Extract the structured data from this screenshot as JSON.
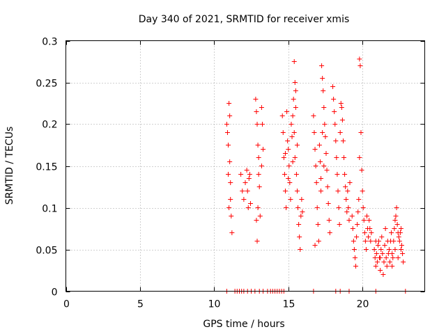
{
  "chart_data": {
    "type": "scatter",
    "title": "Day 340 of 2021, SRMTID for receiver xmis",
    "xlabel": "GPS time / hours",
    "ylabel": "SRMTID / TECUs",
    "xlim": [
      0,
      24.2
    ],
    "ylim": [
      0,
      0.3
    ],
    "xticks": [
      0,
      5,
      10,
      15,
      20
    ],
    "xtick_labels": [
      "0",
      "5",
      "10",
      "15",
      "20"
    ],
    "yticks": [
      0,
      0.05,
      0.1,
      0.15,
      0.2,
      0.25,
      0.3
    ],
    "ytick_labels": [
      "0",
      "0.05",
      "0.1",
      "0.15",
      "0.2",
      "0.25",
      "0.3"
    ],
    "grid": true,
    "marker": "+",
    "series": [
      {
        "name": "SRMTID",
        "color": "#ff0000",
        "points": [
          [
            10.85,
            0.2
          ],
          [
            10.9,
            0.19
          ],
          [
            10.95,
            0.175
          ],
          [
            11.0,
            0.225
          ],
          [
            11.05,
            0.21
          ],
          [
            11.05,
            0.155
          ],
          [
            11.1,
            0.13
          ],
          [
            11.1,
            0.11
          ],
          [
            11.15,
            0.09
          ],
          [
            11.2,
            0.07
          ],
          [
            10.95,
            0.14
          ],
          [
            11.0,
            0.1
          ],
          [
            11.8,
            0.14
          ],
          [
            11.9,
            0.12
          ],
          [
            12.0,
            0.11
          ],
          [
            12.1,
            0.13
          ],
          [
            12.2,
            0.145
          ],
          [
            12.25,
            0.12
          ],
          [
            12.3,
            0.1
          ],
          [
            12.4,
            0.14
          ],
          [
            12.45,
            0.105
          ],
          [
            12.35,
            0.135
          ],
          [
            12.8,
            0.23
          ],
          [
            12.85,
            0.215
          ],
          [
            12.9,
            0.2
          ],
          [
            12.95,
            0.175
          ],
          [
            13.0,
            0.16
          ],
          [
            13.0,
            0.14
          ],
          [
            12.85,
            0.085
          ],
          [
            12.9,
            0.06
          ],
          [
            12.95,
            0.1
          ],
          [
            13.05,
            0.125
          ],
          [
            13.1,
            0.09
          ],
          [
            13.2,
            0.22
          ],
          [
            13.25,
            0.2
          ],
          [
            13.3,
            0.17
          ],
          [
            13.2,
            0.15
          ],
          [
            14.6,
            0.21
          ],
          [
            14.65,
            0.19
          ],
          [
            14.7,
            0.16
          ],
          [
            14.75,
            0.14
          ],
          [
            14.8,
            0.12
          ],
          [
            14.85,
            0.1
          ],
          [
            14.9,
            0.215
          ],
          [
            14.95,
            0.18
          ],
          [
            15.0,
            0.17
          ],
          [
            15.05,
            0.15
          ],
          [
            15.1,
            0.13
          ],
          [
            15.15,
            0.11
          ],
          [
            15.2,
            0.2
          ],
          [
            15.25,
            0.185
          ],
          [
            15.3,
            0.21
          ],
          [
            15.35,
            0.23
          ],
          [
            15.4,
            0.275
          ],
          [
            15.45,
            0.25
          ],
          [
            15.5,
            0.24
          ],
          [
            15.5,
            0.22
          ],
          [
            15.4,
            0.19
          ],
          [
            15.45,
            0.16
          ],
          [
            15.55,
            0.14
          ],
          [
            15.6,
            0.12
          ],
          [
            15.65,
            0.1
          ],
          [
            15.7,
            0.08
          ],
          [
            15.75,
            0.065
          ],
          [
            15.8,
            0.05
          ],
          [
            15.85,
            0.09
          ],
          [
            15.9,
            0.11
          ],
          [
            15.95,
            0.095
          ],
          [
            15.6,
            0.175
          ],
          [
            15.3,
            0.155
          ],
          [
            14.8,
            0.165
          ],
          [
            15.0,
            0.135
          ],
          [
            16.7,
            0.21
          ],
          [
            16.75,
            0.19
          ],
          [
            16.8,
            0.17
          ],
          [
            16.85,
            0.15
          ],
          [
            16.9,
            0.13
          ],
          [
            16.95,
            0.1
          ],
          [
            17.0,
            0.08
          ],
          [
            17.05,
            0.06
          ],
          [
            16.8,
            0.055
          ],
          [
            17.1,
            0.175
          ],
          [
            17.15,
            0.155
          ],
          [
            17.2,
            0.135
          ],
          [
            17.25,
            0.27
          ],
          [
            17.3,
            0.255
          ],
          [
            17.35,
            0.24
          ],
          [
            17.4,
            0.22
          ],
          [
            17.45,
            0.2
          ],
          [
            17.5,
            0.185
          ],
          [
            17.55,
            0.165
          ],
          [
            17.6,
            0.145
          ],
          [
            17.65,
            0.125
          ],
          [
            17.7,
            0.105
          ],
          [
            17.75,
            0.085
          ],
          [
            17.8,
            0.07
          ],
          [
            17.4,
            0.15
          ],
          [
            17.3,
            0.19
          ],
          [
            17.2,
            0.12
          ],
          [
            18.0,
            0.245
          ],
          [
            18.05,
            0.23
          ],
          [
            18.1,
            0.215
          ],
          [
            18.15,
            0.2
          ],
          [
            18.2,
            0.18
          ],
          [
            18.25,
            0.16
          ],
          [
            18.3,
            0.14
          ],
          [
            18.35,
            0.12
          ],
          [
            18.4,
            0.1
          ],
          [
            18.45,
            0.08
          ],
          [
            18.5,
            0.19
          ],
          [
            18.55,
            0.225
          ],
          [
            18.6,
            0.22
          ],
          [
            18.65,
            0.205
          ],
          [
            18.7,
            0.18
          ],
          [
            18.75,
            0.16
          ],
          [
            18.8,
            0.14
          ],
          [
            18.85,
            0.125
          ],
          [
            18.9,
            0.11
          ],
          [
            18.95,
            0.095
          ],
          [
            19.0,
            0.12
          ],
          [
            19.05,
            0.1
          ],
          [
            19.1,
            0.085
          ],
          [
            19.15,
            0.13
          ],
          [
            19.3,
            0.09
          ],
          [
            19.35,
            0.075
          ],
          [
            19.4,
            0.06
          ],
          [
            19.45,
            0.05
          ],
          [
            19.5,
            0.04
          ],
          [
            19.55,
            0.03
          ],
          [
            19.6,
            0.065
          ],
          [
            19.65,
            0.08
          ],
          [
            19.7,
            0.095
          ],
          [
            19.75,
            0.11
          ],
          [
            19.8,
            0.278
          ],
          [
            19.85,
            0.27
          ],
          [
            19.8,
            0.16
          ],
          [
            19.9,
            0.19
          ],
          [
            19.95,
            0.145
          ],
          [
            20.0,
            0.12
          ],
          [
            20.05,
            0.1
          ],
          [
            20.1,
            0.085
          ],
          [
            20.15,
            0.07
          ],
          [
            20.2,
            0.06
          ],
          [
            20.25,
            0.05
          ],
          [
            20.3,
            0.09
          ],
          [
            20.35,
            0.075
          ],
          [
            20.4,
            0.065
          ],
          [
            20.45,
            0.085
          ],
          [
            20.5,
            0.075
          ],
          [
            20.55,
            0.06
          ],
          [
            20.6,
            0.07
          ],
          [
            20.8,
            0.05
          ],
          [
            20.85,
            0.04
          ],
          [
            20.9,
            0.03
          ],
          [
            20.95,
            0.045
          ],
          [
            21.0,
            0.035
          ],
          [
            21.05,
            0.055
          ],
          [
            21.1,
            0.06
          ],
          [
            21.15,
            0.04
          ],
          [
            21.2,
            0.025
          ],
          [
            21.25,
            0.05
          ],
          [
            21.3,
            0.065
          ],
          [
            21.35,
            0.045
          ],
          [
            21.4,
            0.02
          ],
          [
            21.45,
            0.035
          ],
          [
            21.5,
            0.055
          ],
          [
            21.55,
            0.075
          ],
          [
            21.6,
            0.04
          ],
          [
            21.65,
            0.03
          ],
          [
            21.7,
            0.06
          ],
          [
            21.75,
            0.045
          ],
          [
            21.8,
            0.05
          ],
          [
            21.85,
            0.035
          ],
          [
            21.9,
            0.06
          ],
          [
            21.95,
            0.07
          ],
          [
            22.0,
            0.045
          ],
          [
            22.05,
            0.04
          ],
          [
            22.1,
            0.06
          ],
          [
            22.15,
            0.075
          ],
          [
            22.2,
            0.085
          ],
          [
            22.25,
            0.09
          ],
          [
            22.3,
            0.1
          ],
          [
            22.35,
            0.08
          ],
          [
            22.4,
            0.07
          ],
          [
            22.45,
            0.065
          ],
          [
            22.5,
            0.06
          ],
          [
            22.55,
            0.07
          ],
          [
            22.6,
            0.075
          ],
          [
            22.65,
            0.055
          ],
          [
            22.7,
            0.045
          ],
          [
            22.75,
            0.035
          ],
          [
            22.2,
            0.05
          ],
          [
            22.4,
            0.04
          ],
          [
            22.6,
            0.05
          ],
          [
            22.0,
            0.03
          ],
          [
            21.2,
            0.04
          ],
          [
            20.9,
            0.06
          ],
          [
            10.85,
            0.0
          ],
          [
            11.4,
            0.0
          ],
          [
            11.55,
            0.0
          ],
          [
            11.7,
            0.0
          ],
          [
            11.85,
            0.0
          ],
          [
            12.0,
            0.0
          ],
          [
            12.25,
            0.0
          ],
          [
            12.5,
            0.0
          ],
          [
            12.75,
            0.0
          ],
          [
            13.05,
            0.0
          ],
          [
            13.3,
            0.0
          ],
          [
            13.6,
            0.0
          ],
          [
            13.8,
            0.0
          ],
          [
            13.95,
            0.0
          ],
          [
            14.1,
            0.0
          ],
          [
            14.25,
            0.0
          ],
          [
            14.4,
            0.0
          ],
          [
            14.55,
            0.0
          ],
          [
            14.7,
            0.0
          ],
          [
            16.7,
            0.0
          ],
          [
            18.2,
            0.0
          ],
          [
            18.5,
            0.0
          ],
          [
            19.1,
            0.0
          ],
          [
            20.9,
            0.0
          ],
          [
            22.9,
            0.0
          ]
        ]
      }
    ]
  }
}
